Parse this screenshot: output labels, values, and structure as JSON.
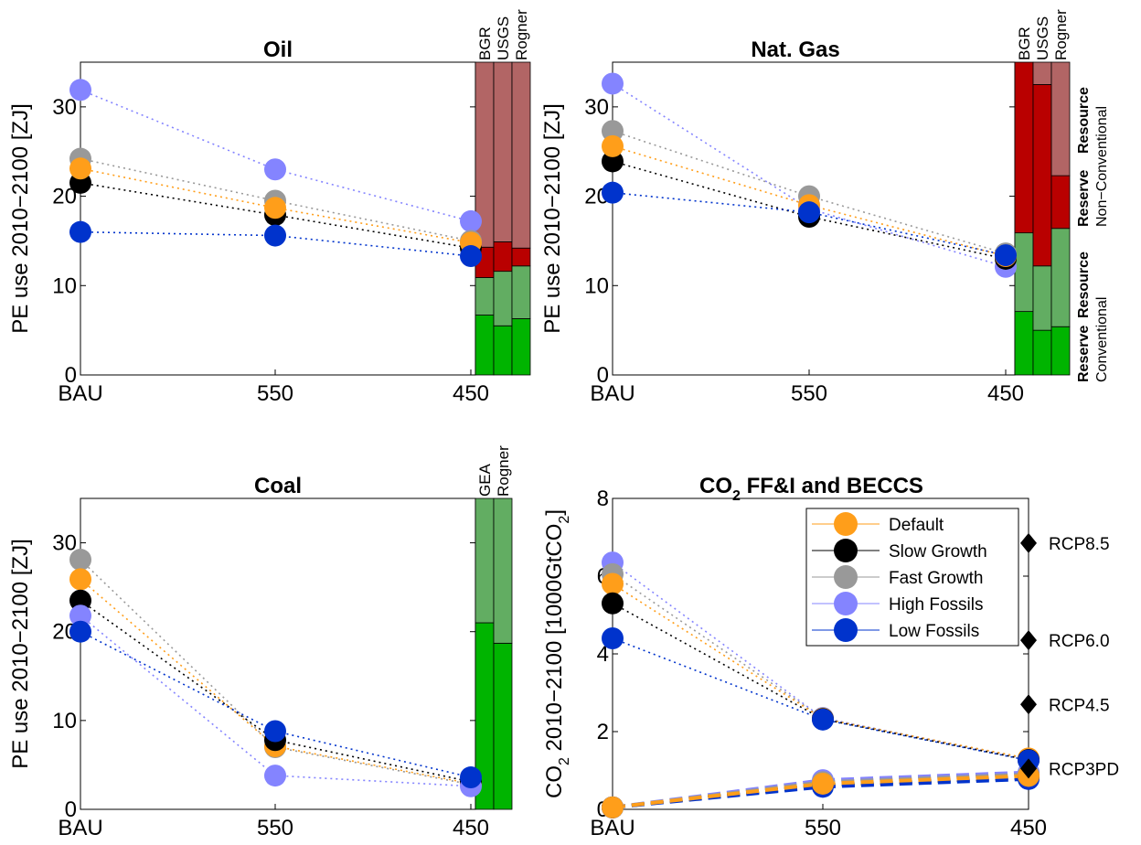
{
  "colors": {
    "default": "#ff9e1a",
    "slow": "#000000",
    "fast": "#999999",
    "high": "#8484ff",
    "low": "#0033cc",
    "conv_reserve": "#00b400",
    "conv_resource": "#62ad62",
    "nonconv_reserve": "#b90000",
    "nonconv_resource": "#b26565"
  },
  "chart_data": [
    {
      "type": "scatter",
      "title": "Oil",
      "ylabel": "PE use 2010−2100 [ZJ]",
      "ylim": [
        0,
        35
      ],
      "yticks": [
        0,
        10,
        20,
        30
      ],
      "categories": [
        "BAU",
        "550",
        "450"
      ],
      "series": [
        {
          "key": "high",
          "values": [
            31.9,
            23.0,
            17.2
          ]
        },
        {
          "key": "fast",
          "values": [
            24.2,
            19.5,
            15.0
          ]
        },
        {
          "key": "slow",
          "values": [
            21.5,
            17.9,
            14.2
          ]
        },
        {
          "key": "default",
          "values": [
            23.1,
            18.7,
            14.8
          ]
        },
        {
          "key": "low",
          "values": [
            16.0,
            15.6,
            13.3
          ]
        }
      ],
      "stack_labels": [
        "BGR",
        "USGS",
        "Rogner"
      ],
      "stacks": [
        [
          {
            "key": "conv_reserve",
            "value": 6.7
          },
          {
            "key": "conv_resource",
            "value": 4.2
          },
          {
            "key": "nonconv_reserve",
            "value": 3.4
          },
          {
            "key": "nonconv_resource",
            "value": 20.7
          }
        ],
        [
          {
            "key": "conv_reserve",
            "value": 5.5
          },
          {
            "key": "conv_resource",
            "value": 6.1
          },
          {
            "key": "nonconv_reserve",
            "value": 3.3
          },
          {
            "key": "nonconv_resource",
            "value": 20.1
          }
        ],
        [
          {
            "key": "conv_reserve",
            "value": 6.3
          },
          {
            "key": "conv_resource",
            "value": 5.9
          },
          {
            "key": "nonconv_reserve",
            "value": 2.0
          },
          {
            "key": "nonconv_resource",
            "value": 20.8
          }
        ]
      ]
    },
    {
      "type": "scatter",
      "title": "Nat. Gas",
      "ylabel": "PE use 2010−2100 [ZJ]",
      "ylim": [
        0,
        35
      ],
      "yticks": [
        0,
        10,
        20,
        30
      ],
      "categories": [
        "BAU",
        "550",
        "450"
      ],
      "series": [
        {
          "key": "high",
          "values": [
            32.6,
            18.6,
            12.1
          ]
        },
        {
          "key": "fast",
          "values": [
            27.3,
            20.0,
            13.6
          ]
        },
        {
          "key": "slow",
          "values": [
            23.9,
            17.7,
            13.0
          ]
        },
        {
          "key": "default",
          "values": [
            25.6,
            19.0,
            13.3
          ]
        },
        {
          "key": "low",
          "values": [
            20.4,
            18.2,
            13.4
          ]
        }
      ],
      "stack_labels": [
        "BGR",
        "USGS",
        "Rogner"
      ],
      "stacks": [
        [
          {
            "key": "conv_reserve",
            "value": 7.1
          },
          {
            "key": "conv_resource",
            "value": 8.8
          },
          {
            "key": "nonconv_reserve",
            "value": 19.1
          },
          {
            "key": "nonconv_resource",
            "value": 0.0
          }
        ],
        [
          {
            "key": "conv_reserve",
            "value": 5.0
          },
          {
            "key": "conv_resource",
            "value": 7.2
          },
          {
            "key": "nonconv_reserve",
            "value": 20.3
          },
          {
            "key": "nonconv_resource",
            "value": 2.5
          }
        ],
        [
          {
            "key": "conv_reserve",
            "value": 5.4
          },
          {
            "key": "conv_resource",
            "value": 11.0
          },
          {
            "key": "nonconv_reserve",
            "value": 5.9
          },
          {
            "key": "nonconv_resource",
            "value": 12.7
          }
        ]
      ],
      "side_labels": {
        "conventional": "Conventional",
        "non_conventional": "Non−Conventional",
        "reserve": "Reserve",
        "resource": "Resource"
      }
    },
    {
      "type": "scatter",
      "title": "Coal",
      "ylabel": "PE use 2010−2100 [ZJ]",
      "ylim": [
        0,
        35
      ],
      "yticks": [
        0,
        10,
        20,
        30
      ],
      "categories": [
        "BAU",
        "550",
        "450"
      ],
      "series": [
        {
          "key": "fast",
          "values": [
            28.1,
            7.0,
            2.8
          ]
        },
        {
          "key": "default",
          "values": [
            25.9,
            7.1,
            2.9
          ]
        },
        {
          "key": "slow",
          "values": [
            23.5,
            7.8,
            3.1
          ]
        },
        {
          "key": "high",
          "values": [
            21.8,
            3.8,
            2.6
          ]
        },
        {
          "key": "low",
          "values": [
            20.0,
            8.8,
            3.6
          ]
        }
      ],
      "stack_labels": [
        "GEA",
        "Rogner"
      ],
      "stacks": [
        [
          {
            "key": "conv_reserve",
            "value": 21.0
          },
          {
            "key": "conv_resource",
            "value": 14.0
          }
        ],
        [
          {
            "key": "conv_reserve",
            "value": 18.7
          },
          {
            "key": "conv_resource",
            "value": 16.3
          }
        ]
      ]
    },
    {
      "type": "scatter",
      "title_main": "CO",
      "title_sub": "2",
      "title_rest": " FF&I and BECCS",
      "ylabel_main": "CO",
      "ylabel_sub": "2",
      "ylabel_mid": " 2010−2100 [1000GtCO",
      "ylabel_sub2": "2",
      "ylabel_end": "]",
      "ylim": [
        0,
        8
      ],
      "yticks": [
        0,
        2,
        4,
        6,
        8
      ],
      "categories": [
        "BAU",
        "550",
        "450"
      ],
      "series": [
        {
          "key": "high",
          "name": "High Fossils",
          "values": [
            6.35,
            2.35,
            1.28
          ]
        },
        {
          "key": "fast",
          "name": "Fast Growth",
          "values": [
            6.05,
            2.34,
            1.3
          ]
        },
        {
          "key": "default",
          "name": "Default",
          "values": [
            5.8,
            2.33,
            1.31
          ]
        },
        {
          "key": "slow",
          "name": "Slow Growth",
          "values": [
            5.3,
            2.32,
            1.27
          ]
        },
        {
          "key": "low",
          "name": "Low Fossils",
          "values": [
            4.4,
            2.31,
            1.26
          ]
        }
      ],
      "beccs": [
        {
          "key": "high",
          "values": [
            0.05,
            0.75,
            0.95
          ]
        },
        {
          "key": "fast",
          "values": [
            0.05,
            0.7,
            0.9
          ]
        },
        {
          "key": "slow",
          "values": [
            0.05,
            0.62,
            0.82
          ]
        },
        {
          "key": "low",
          "values": [
            0.05,
            0.58,
            0.78
          ]
        },
        {
          "key": "default",
          "values": [
            0.05,
            0.66,
            0.86
          ]
        }
      ],
      "legend_order": [
        "default",
        "slow",
        "fast",
        "high",
        "low"
      ],
      "rcp": [
        {
          "label": "RCP8.5",
          "value": 6.85
        },
        {
          "label": "RCP6.0",
          "value": 4.35
        },
        {
          "label": "RCP4.5",
          "value": 2.7
        },
        {
          "label": "RCP3PD",
          "value": 1.05
        }
      ]
    }
  ]
}
